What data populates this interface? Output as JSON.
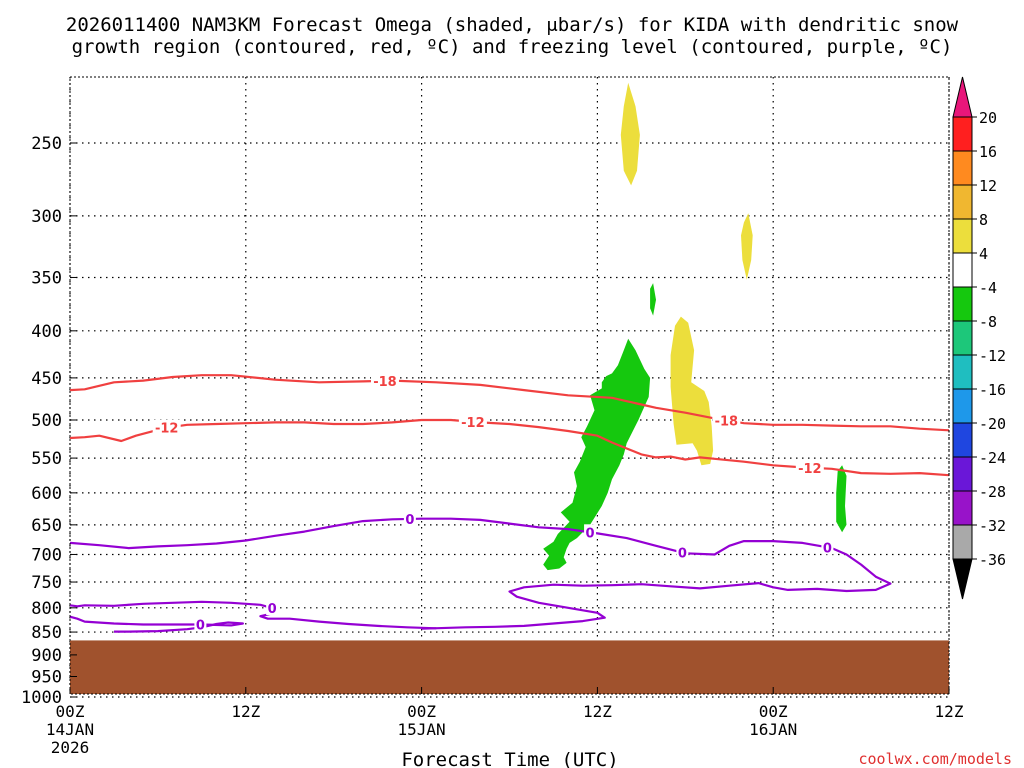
{
  "chart_data": {
    "type": "contour",
    "title_line1": "2026011400 NAM3KM Forecast Omega (shaded, μbar/s) for KIDA with dendritic snow",
    "title_line2": "growth region (contoured, red, ºC) and freezing level (contoured, purple, ºC)",
    "xlabel": "Forecast Time (UTC)",
    "credit": "coolwx.com/models",
    "x_ticks": [
      {
        "hours": 0,
        "label": "00Z",
        "sub1": "14JAN",
        "sub2": "2026"
      },
      {
        "hours": 12,
        "label": "12Z",
        "sub1": "",
        "sub2": ""
      },
      {
        "hours": 24,
        "label": "00Z",
        "sub1": "15JAN",
        "sub2": ""
      },
      {
        "hours": 36,
        "label": "12Z",
        "sub1": "",
        "sub2": ""
      },
      {
        "hours": 48,
        "label": "00Z",
        "sub1": "16JAN",
        "sub2": ""
      },
      {
        "hours": 60,
        "label": "12Z",
        "sub1": "",
        "sub2": ""
      }
    ],
    "xlim": [
      0,
      60
    ],
    "y_ticks": [
      250,
      300,
      350,
      400,
      450,
      500,
      550,
      600,
      650,
      700,
      750,
      800,
      850,
      900,
      950,
      1000
    ],
    "ylim": [
      1000,
      200
    ],
    "ground_level_hpa": 868,
    "colorbar": {
      "labels": [
        "20",
        "16",
        "12",
        "8",
        "4",
        "-4",
        "-8",
        "-12",
        "-16",
        "-20",
        "-24",
        "-28",
        "-32",
        "-36"
      ],
      "colors": [
        "#ff1f1f",
        "#ff8a1f",
        "#f0b730",
        "#ecde3c",
        "#ffffff",
        "#15c80e",
        "#1dc77a",
        "#1fbec0",
        "#1e98ea",
        "#1f46e0",
        "#6a17d8",
        "#9813c9",
        "#a9a9a9"
      ],
      "top_cap": "#e8167a",
      "bottom_cap": "#000000"
    },
    "dgz_contours": [
      {
        "level": -18,
        "label": "-18",
        "points": [
          [
            0,
            464
          ],
          [
            1,
            463
          ],
          [
            2,
            459
          ],
          [
            3,
            455
          ],
          [
            5,
            453
          ],
          [
            7,
            449
          ],
          [
            9,
            447
          ],
          [
            11,
            447
          ],
          [
            14,
            452
          ],
          [
            17,
            455
          ],
          [
            20,
            454
          ],
          [
            22,
            453
          ],
          [
            25,
            455
          ],
          [
            28,
            458
          ],
          [
            31,
            464
          ],
          [
            34,
            470
          ],
          [
            37,
            473
          ],
          [
            38,
            477
          ],
          [
            39,
            481
          ],
          [
            40,
            485
          ],
          [
            42,
            491
          ],
          [
            44,
            498
          ],
          [
            46,
            504
          ],
          [
            48,
            506
          ],
          [
            50,
            506
          ],
          [
            52,
            507
          ],
          [
            54,
            508
          ],
          [
            56,
            508
          ],
          [
            58,
            511
          ],
          [
            60,
            513
          ]
        ],
        "labels_at": [
          21.5,
          44.8
        ]
      },
      {
        "level": -12,
        "label": "-12",
        "points": [
          [
            0,
            523
          ],
          [
            1,
            522
          ],
          [
            2,
            520
          ],
          [
            3.5,
            527
          ],
          [
            4.5,
            520
          ],
          [
            6.5,
            510
          ],
          [
            8,
            506
          ],
          [
            10,
            505
          ],
          [
            12,
            504
          ],
          [
            14,
            503
          ],
          [
            16,
            503
          ],
          [
            18,
            505
          ],
          [
            20,
            505
          ],
          [
            22,
            503
          ],
          [
            24,
            500
          ],
          [
            26,
            500
          ],
          [
            28,
            503
          ],
          [
            30,
            505
          ],
          [
            32,
            509
          ],
          [
            34,
            514
          ],
          [
            36,
            520
          ],
          [
            37,
            529
          ],
          [
            38,
            537
          ],
          [
            39,
            545
          ],
          [
            40,
            549
          ],
          [
            41,
            548
          ],
          [
            42,
            552
          ],
          [
            43,
            549
          ],
          [
            44,
            551
          ],
          [
            46,
            555
          ],
          [
            48,
            560
          ],
          [
            50,
            563
          ],
          [
            52,
            565
          ],
          [
            54,
            571
          ],
          [
            56,
            572
          ],
          [
            58,
            571
          ],
          [
            60,
            574
          ]
        ],
        "labels_at": [
          6.6,
          27.5,
          50.5
        ]
      }
    ],
    "freezing_contours": [
      {
        "level": 0,
        "label": "0",
        "points": [
          [
            0,
            680
          ],
          [
            2,
            684
          ],
          [
            4,
            689
          ],
          [
            6,
            686
          ],
          [
            8,
            684
          ],
          [
            10,
            681
          ],
          [
            12,
            676
          ],
          [
            14,
            668
          ],
          [
            16,
            661
          ],
          [
            18,
            652
          ],
          [
            20,
            644
          ],
          [
            22,
            641
          ],
          [
            24,
            640
          ],
          [
            26,
            640
          ],
          [
            28,
            642
          ],
          [
            30,
            648
          ],
          [
            32,
            654
          ],
          [
            34,
            657
          ],
          [
            36,
            664
          ],
          [
            38,
            672
          ],
          [
            40,
            685
          ],
          [
            42,
            698
          ],
          [
            44,
            700
          ],
          [
            45,
            685
          ],
          [
            46,
            677
          ],
          [
            48,
            677
          ],
          [
            50,
            680
          ],
          [
            52,
            689
          ],
          [
            53,
            700
          ],
          [
            54,
            718
          ],
          [
            55,
            740
          ],
          [
            56,
            753
          ],
          [
            55,
            765
          ],
          [
            53,
            767
          ],
          [
            51,
            763
          ],
          [
            49,
            765
          ],
          [
            48,
            760
          ],
          [
            47,
            752
          ],
          [
            45,
            757
          ],
          [
            43,
            762
          ],
          [
            41,
            758
          ],
          [
            39,
            754
          ],
          [
            37,
            756
          ],
          [
            35,
            757
          ],
          [
            33,
            755
          ],
          [
            31,
            760
          ],
          [
            30,
            768
          ],
          [
            30.5,
            778
          ],
          [
            32,
            790
          ],
          [
            34,
            800
          ],
          [
            36,
            810
          ],
          [
            36.5,
            820
          ],
          [
            35,
            827
          ],
          [
            33,
            832
          ],
          [
            31,
            837
          ],
          [
            29,
            839
          ],
          [
            27,
            840
          ],
          [
            24,
            843
          ]
        ],
        "labels_at": [
          23.2,
          41.8,
          35.5,
          51.7
        ]
      },
      {
        "level": 0,
        "label": "0",
        "points": [
          [
            0,
            795
          ],
          [
            0.5,
            797
          ],
          [
            1,
            795
          ],
          [
            3,
            796
          ],
          [
            5,
            792
          ],
          [
            7,
            790
          ],
          [
            9,
            788
          ],
          [
            11,
            790
          ],
          [
            13,
            794
          ],
          [
            14,
            802
          ],
          [
            14,
            810
          ],
          [
            13,
            817
          ],
          [
            13.5,
            822
          ],
          [
            15,
            822
          ],
          [
            17,
            828
          ],
          [
            19,
            833
          ],
          [
            21,
            837
          ],
          [
            23,
            840
          ],
          [
            25,
            842
          ]
        ],
        "labels_at": [
          13.8
        ]
      },
      {
        "level": 0,
        "label": "0",
        "points": [
          [
            0,
            818
          ],
          [
            0.5,
            822
          ],
          [
            1,
            828
          ],
          [
            3,
            832
          ],
          [
            5,
            834
          ],
          [
            7,
            834
          ],
          [
            9,
            834
          ],
          [
            11,
            836
          ],
          [
            11.8,
            832
          ],
          [
            10.8,
            830
          ],
          [
            10,
            833
          ],
          [
            9,
            840
          ],
          [
            8,
            844
          ],
          [
            6,
            848
          ],
          [
            4,
            849
          ],
          [
            3,
            849
          ]
        ],
        "labels_at": [
          8.9
        ]
      }
    ],
    "omega_shading": [
      {
        "value_range": [
          -8,
          -4
        ],
        "color": "#15c80e",
        "regions": [
          [
            [
              36.3,
              455
            ],
            [
              36.6,
              448
            ],
            [
              37.0,
              445
            ],
            [
              37.4,
              436
            ],
            [
              37.8,
              420
            ],
            [
              38.1,
              408
            ],
            [
              38.6,
              420
            ],
            [
              39.2,
              440
            ],
            [
              39.6,
              450
            ],
            [
              39.5,
              472
            ],
            [
              38.8,
              500
            ],
            [
              38.0,
              530
            ],
            [
              37.8,
              545
            ],
            [
              37.5,
              560
            ],
            [
              37.0,
              580
            ],
            [
              36.7,
              600
            ],
            [
              36.3,
              620
            ],
            [
              35.5,
              650
            ],
            [
              34.6,
              672
            ],
            [
              34.1,
              680
            ],
            [
              33.9,
              690
            ],
            [
              33.7,
              705
            ],
            [
              33.9,
              715
            ],
            [
              33.4,
              725
            ],
            [
              32.6,
              728
            ],
            [
              32.3,
              718
            ],
            [
              32.7,
              702
            ],
            [
              32.3,
              690
            ],
            [
              33.0,
              678
            ],
            [
              33.3,
              665
            ],
            [
              34.1,
              645
            ],
            [
              33.5,
              630
            ],
            [
              34.3,
              615
            ],
            [
              34.6,
              590
            ],
            [
              34.4,
              570
            ],
            [
              34.8,
              555
            ],
            [
              35.2,
              535
            ],
            [
              34.9,
              522
            ],
            [
              35.3,
              508
            ],
            [
              35.8,
              488
            ],
            [
              35.5,
              470
            ],
            [
              36.3,
              462
            ]
          ],
          [
            [
              39.6,
              360
            ],
            [
              39.8,
              355
            ],
            [
              40.0,
              370
            ],
            [
              39.8,
              385
            ],
            [
              39.6,
              378
            ]
          ],
          [
            [
              52.4,
              568
            ],
            [
              52.7,
              560
            ],
            [
              53.0,
              575
            ],
            [
              52.9,
              620
            ],
            [
              53.0,
              650
            ],
            [
              52.7,
              662
            ],
            [
              52.3,
              645
            ],
            [
              52.3,
              600
            ]
          ]
        ]
      },
      {
        "value_range": [
          4,
          8
        ],
        "color": "#ecde3c",
        "regions": [
          [
            [
              37.8,
              228
            ],
            [
              38.1,
              215
            ],
            [
              38.6,
              228
            ],
            [
              38.9,
              245
            ],
            [
              38.7,
              268
            ],
            [
              38.3,
              278
            ],
            [
              37.8,
              268
            ],
            [
              37.6,
              245
            ]
          ],
          [
            [
              46.0,
              305
            ],
            [
              46.3,
              298
            ],
            [
              46.6,
              315
            ],
            [
              46.5,
              335
            ],
            [
              46.2,
              352
            ],
            [
              45.9,
              335
            ],
            [
              45.8,
              315
            ]
          ],
          [
            [
              41.3,
              395
            ],
            [
              41.7,
              386
            ],
            [
              42.2,
              392
            ],
            [
              42.6,
              420
            ],
            [
              42.4,
              455
            ],
            [
              43.3,
              465
            ],
            [
              43.6,
              478
            ],
            [
              43.8,
              508
            ],
            [
              43.9,
              540
            ],
            [
              43.7,
              558
            ],
            [
              43.1,
              560
            ],
            [
              42.8,
              540
            ],
            [
              42.5,
              530
            ],
            [
              41.4,
              532
            ],
            [
              41.2,
              505
            ],
            [
              41.0,
              460
            ],
            [
              41.0,
              425
            ]
          ]
        ]
      }
    ]
  }
}
